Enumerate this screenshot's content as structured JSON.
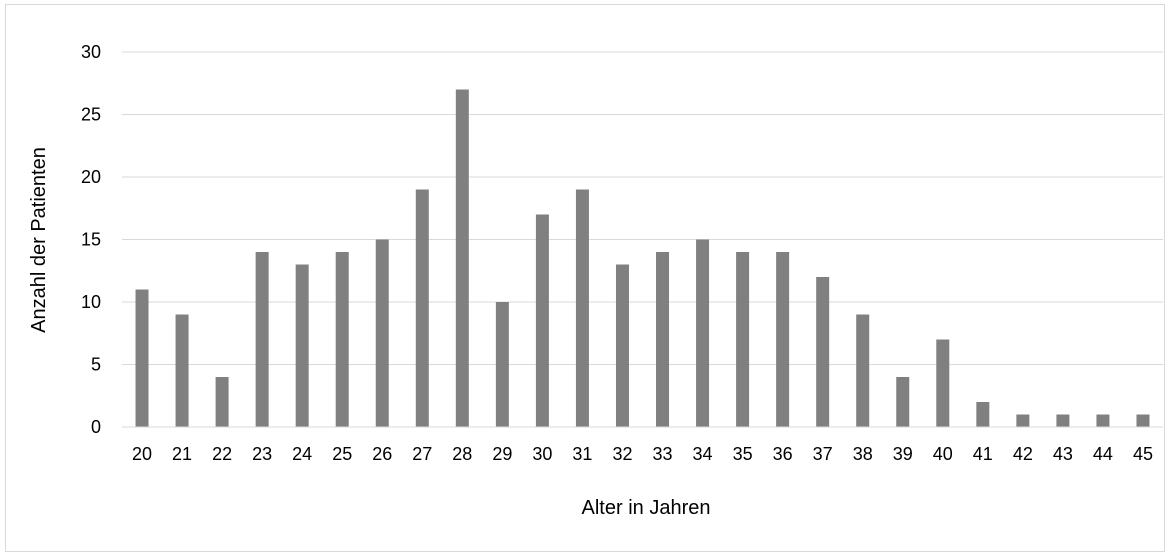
{
  "chart_data": {
    "type": "bar",
    "title": "",
    "xlabel": "Alter in Jahren",
    "ylabel": "Anzahl der Patienten",
    "categories": [
      "20",
      "21",
      "22",
      "23",
      "24",
      "25",
      "26",
      "27",
      "28",
      "29",
      "30",
      "31",
      "32",
      "33",
      "34",
      "35",
      "36",
      "37",
      "38",
      "39",
      "40",
      "41",
      "42",
      "43",
      "44",
      "45"
    ],
    "values": [
      11,
      9,
      4,
      14,
      13,
      14,
      15,
      19,
      27,
      10,
      17,
      19,
      13,
      14,
      15,
      14,
      14,
      12,
      9,
      4,
      7,
      2,
      1,
      1,
      1,
      1
    ],
    "ylim": [
      0,
      30
    ],
    "yticks": [
      "0",
      "5",
      "10",
      "15",
      "20",
      "25",
      "30"
    ],
    "grid": true,
    "legend": "none",
    "bar_color": "#808080",
    "grid_color": "#d9d9d9"
  }
}
